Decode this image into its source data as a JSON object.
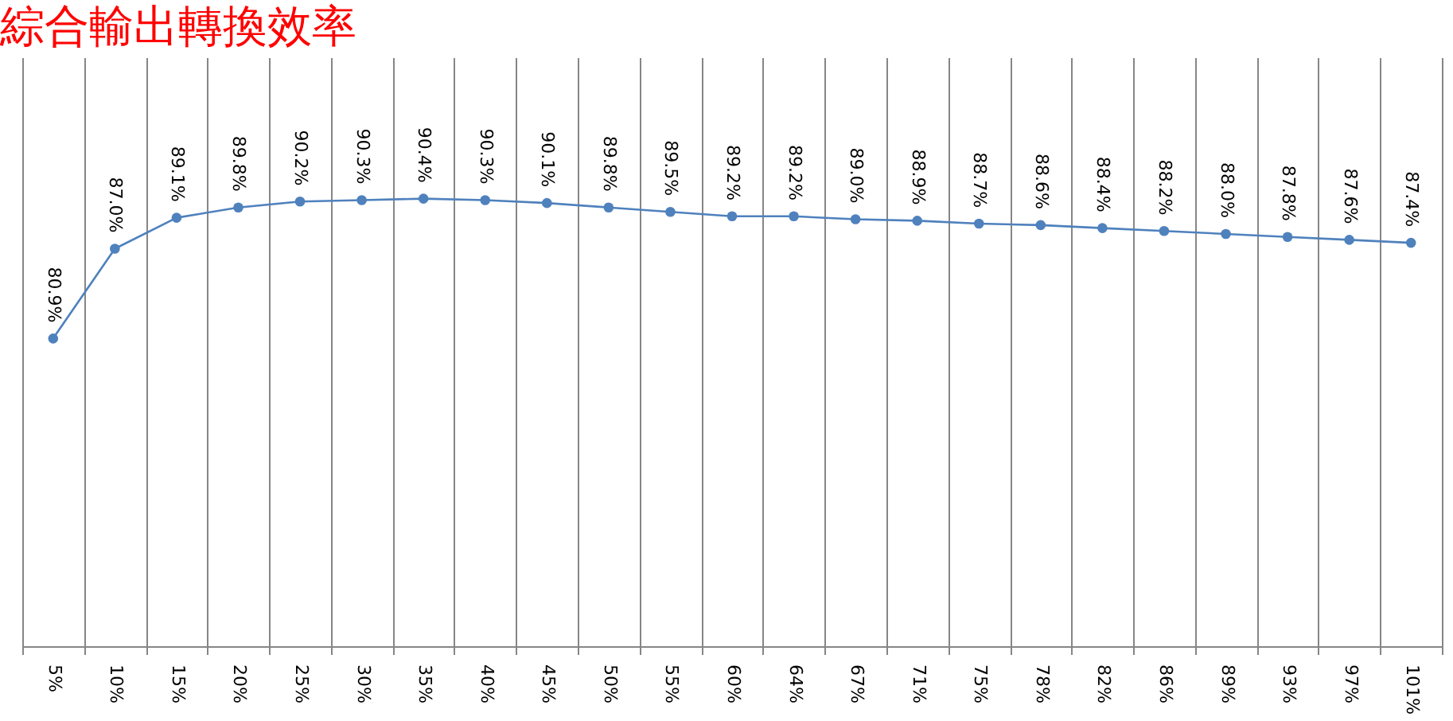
{
  "chart_data": {
    "type": "line",
    "title": "綜合輸出轉換效率",
    "categories": [
      "5%",
      "10%",
      "15%",
      "20%",
      "25%",
      "30%",
      "35%",
      "40%",
      "45%",
      "50%",
      "55%",
      "60%",
      "64%",
      "67%",
      "71%",
      "75%",
      "78%",
      "82%",
      "86%",
      "89%",
      "93%",
      "97%",
      "101%"
    ],
    "series": [
      {
        "color": "#4f81bd",
        "values": [
          80.9,
          87.0,
          89.1,
          89.8,
          90.2,
          90.3,
          90.4,
          90.3,
          90.1,
          89.8,
          89.5,
          89.2,
          89.2,
          89.0,
          88.9,
          88.7,
          88.6,
          88.4,
          88.2,
          88.0,
          87.8,
          87.6,
          87.4
        ],
        "value_labels": [
          "80.9%",
          "87.0%",
          "89.1%",
          "89.8%",
          "90.2%",
          "90.3%",
          "90.4%",
          "90.3%",
          "90.1%",
          "89.8%",
          "89.5%",
          "89.2%",
          "89.2%",
          "89.0%",
          "88.9%",
          "88.7%",
          "88.6%",
          "88.4%",
          "88.2%",
          "88.0%",
          "87.8%",
          "87.6%",
          "87.4%"
        ]
      }
    ],
    "ylim": [
      60,
      100
    ],
    "tick_labels": "x",
    "grid": "x",
    "marker": "circle"
  }
}
